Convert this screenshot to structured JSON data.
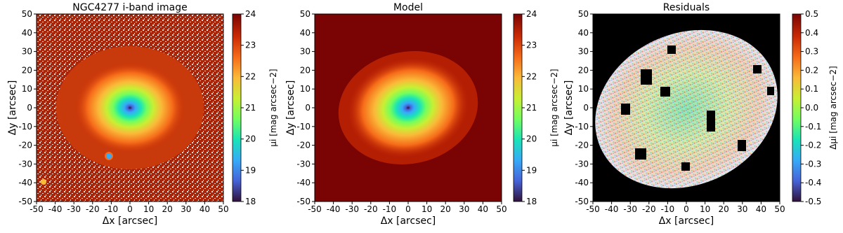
{
  "chart_data": [
    {
      "type": "image",
      "title": "NGC4277 i-band image",
      "xlabel": "Δx [arcsec]",
      "ylabel": "Δy [arcsec]",
      "xlim": [
        -50,
        50
      ],
      "ylim": [
        -50,
        50
      ],
      "xticks": [
        -50,
        -40,
        -30,
        -20,
        -10,
        0,
        10,
        20,
        30,
        40,
        50
      ],
      "yticks": [
        -50,
        -40,
        -30,
        -20,
        -10,
        0,
        10,
        20,
        30,
        40,
        50
      ],
      "colorbar": {
        "label": "μi [mag arcsec−2]",
        "lim": [
          18,
          24
        ],
        "ticks": [
          18,
          19,
          20,
          21,
          22,
          23,
          24
        ]
      }
    },
    {
      "type": "image",
      "title": "Model",
      "xlabel": "Δx [arcsec]",
      "ylabel": "Δy [arcsec]",
      "xlim": [
        -50,
        50
      ],
      "ylim": [
        -50,
        50
      ],
      "xticks": [
        -50,
        -40,
        -30,
        -20,
        -10,
        0,
        10,
        20,
        30,
        40,
        50
      ],
      "yticks": [
        -50,
        -40,
        -30,
        -20,
        -10,
        0,
        10,
        20,
        30,
        40,
        50
      ],
      "colorbar": {
        "label": "μi [mag arcsec−2]",
        "lim": [
          18,
          24
        ],
        "ticks": [
          18,
          19,
          20,
          21,
          22,
          23,
          24
        ]
      }
    },
    {
      "type": "image",
      "title": "Residuals",
      "xlabel": "Δx [arcsec]",
      "ylabel": "Δy [arcsec]",
      "xlim": [
        -50,
        50
      ],
      "ylim": [
        -50,
        50
      ],
      "xticks": [
        -50,
        -40,
        -30,
        -20,
        -10,
        0,
        10,
        20,
        30,
        40,
        50
      ],
      "yticks": [
        -50,
        -40,
        -30,
        -20,
        -10,
        0,
        10,
        20,
        30,
        40,
        50
      ],
      "colorbar": {
        "label": "Δμi [mag arcsec−2]",
        "lim": [
          -0.5,
          0.5
        ],
        "ticks": [
          -0.5,
          -0.4,
          -0.3,
          -0.2,
          -0.1,
          {
            "value": 0,
            "label": "0.0"
          },
          0.1,
          0.2,
          0.3,
          0.4,
          0.5
        ]
      }
    }
  ]
}
